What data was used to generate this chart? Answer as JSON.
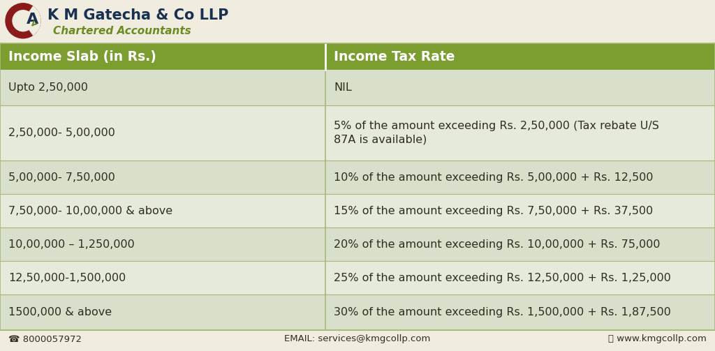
{
  "header_col1": "Income Slab (in Rs.)",
  "header_col2": "Income Tax Rate",
  "rows": [
    [
      "Upto 2,50,000",
      "NIL"
    ],
    [
      "2,50,000- 5,00,000",
      "5% of the amount exceeding Rs. 2,50,000 (Tax rebate U/S\n87A is available)"
    ],
    [
      "5,00,000- 7,50,000",
      "10% of the amount exceeding Rs. 5,00,000 + Rs. 12,500"
    ],
    [
      "7,50,000- 10,00,000 & above",
      "15% of the amount exceeding Rs. 7,50,000 + Rs. 37,500"
    ],
    [
      "10,00,000 – 1,250,000",
      "20% of the amount exceeding Rs. 10,00,000 + Rs. 75,000"
    ],
    [
      "12,50,000-1,500,000",
      "25% of the amount exceeding Rs. 12,50,000 + Rs. 1,25,000"
    ],
    [
      "1500,000 & above",
      "30% of the amount exceeding Rs. 1,500,000 + Rs. 1,87,500"
    ]
  ],
  "bg_color": "#f0ede0",
  "header_bg": "#7c9e30",
  "header_text_color": "#ffffff",
  "row_colors_alt": [
    "#d8dfca",
    "#e5eada"
  ],
  "divider_color": "#a8b87a",
  "text_color": "#2e2e1e",
  "col_split": 0.455,
  "logo_text_main": "K M Gatecha & Co LLP",
  "logo_text_sub": "Chartered Accountants",
  "logo_main_color": "#1a3050",
  "logo_sub_color": "#6a8c20",
  "footer_phone": "☎ 8000057972",
  "footer_email": "EMAIL: services@kmgcollp.com",
  "footer_web": "ⓘ www.kmgcollp.com",
  "footer_color": "#2e2e1e",
  "ca_color_outer": "#8b1a1a",
  "ca_color_inner": "#1a3050",
  "table_font_size": 11.5,
  "header_font_size": 13.5,
  "logo_font_size_main": 15,
  "logo_font_size_sub": 11
}
